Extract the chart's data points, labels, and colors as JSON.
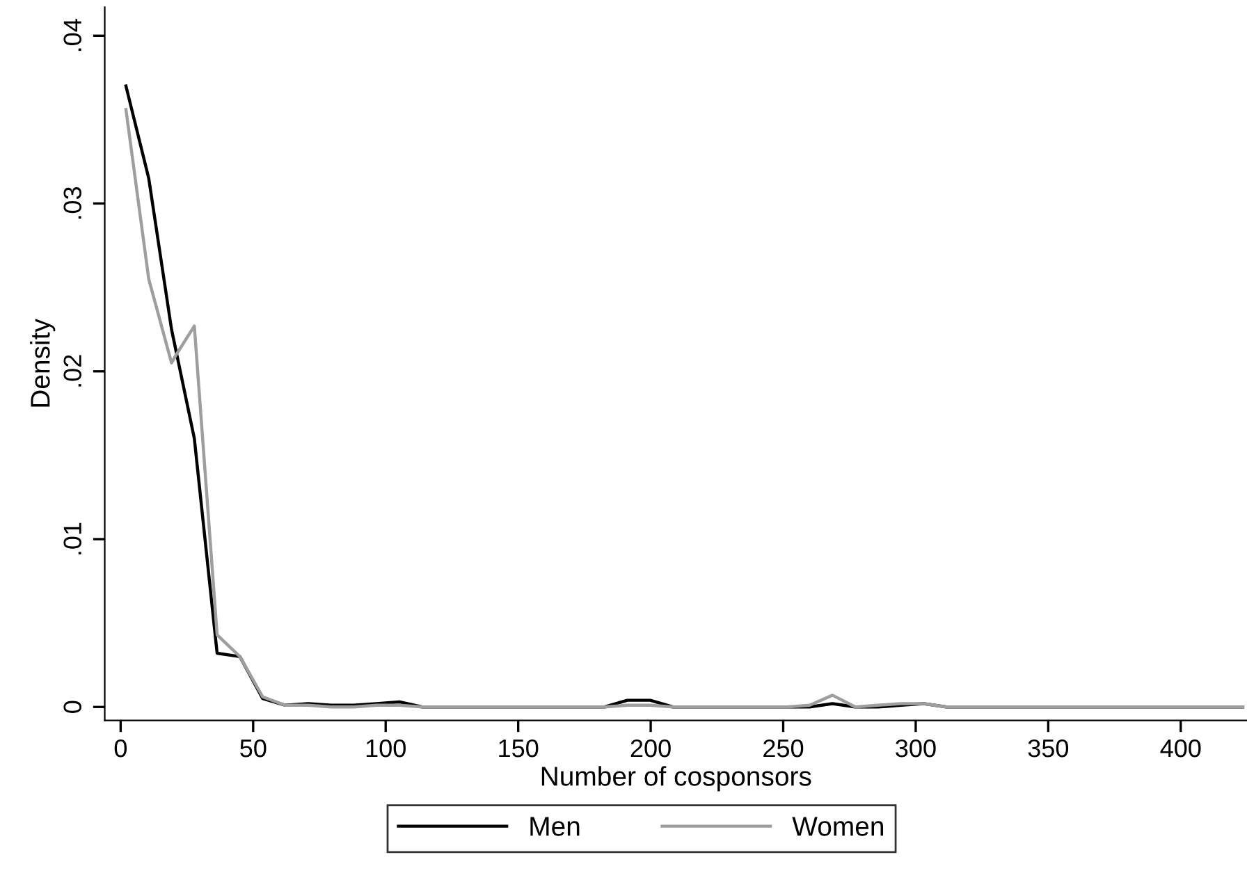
{
  "chart_data": {
    "type": "line",
    "xlabel": "Number of cosponsors",
    "ylabel": "Density",
    "series": [
      {
        "name": "Men",
        "color": "#000000",
        "x": [
          2,
          10.6,
          19.2,
          27.8,
          36.4,
          45,
          53.6,
          62.2,
          70.8,
          79.4,
          88,
          96.6,
          105.2,
          113.8,
          182.6,
          191.2,
          199.8,
          208.4,
          251.4,
          260,
          268.6,
          277.2,
          285.8,
          294.4,
          303,
          311.6,
          423.4
        ],
        "values": [
          0.037,
          0.0315,
          0.0225,
          0.016,
          0.0032,
          0.003,
          0.0005,
          0.0001,
          0.0002,
          0.0001,
          0.0001,
          0.0002,
          0.0003,
          0,
          0,
          0.0004,
          0.0004,
          0,
          0,
          0,
          0.0002,
          0,
          0,
          0.0001,
          0.0002,
          0,
          0
        ]
      },
      {
        "name": "Women",
        "color": "#9e9e9e",
        "x": [
          2,
          10.6,
          19.2,
          21,
          27.8,
          36.4,
          45,
          53.6,
          62.2,
          70.8,
          79.4,
          88,
          96.6,
          105.2,
          113.8,
          182.6,
          191.2,
          199.8,
          208.4,
          251.4,
          260,
          268.6,
          277.2,
          285.8,
          294.4,
          303,
          311.6,
          423.4
        ],
        "values": [
          0.0356,
          0.0255,
          0.0205,
          0.021,
          0.0227,
          0.0043,
          0.003,
          0.0006,
          0.0001,
          0.0001,
          0,
          0,
          0.0001,
          0.0001,
          0,
          0,
          0.0001,
          0.0001,
          0,
          0,
          0.0001,
          0.0007,
          0,
          0.0001,
          0.0002,
          0.0002,
          0,
          0
        ]
      }
    ],
    "xlim": [
      -6,
      425
    ],
    "ylim": [
      -0.0008,
      0.0417
    ],
    "xticks": [
      0,
      50,
      100,
      150,
      200,
      250,
      300,
      350,
      400
    ],
    "yticks": [
      {
        "value": 0,
        "label": "0"
      },
      {
        "value": 0.01,
        "label": ".01"
      },
      {
        "value": 0.02,
        "label": ".02"
      },
      {
        "value": 0.03,
        "label": ".03"
      },
      {
        "value": 0.04,
        "label": ".04"
      }
    ],
    "grid": false,
    "legend": "bottom",
    "marker": "none",
    "line_style": "solid"
  }
}
